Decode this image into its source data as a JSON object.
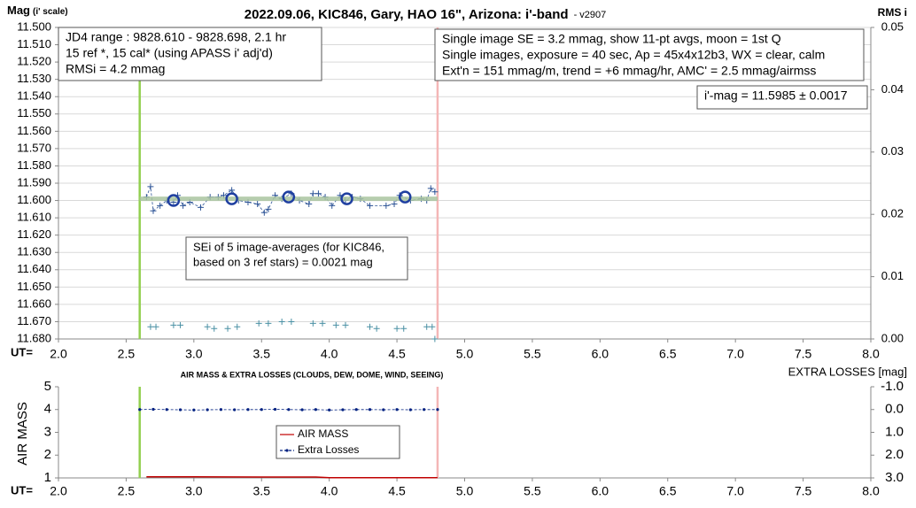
{
  "chart_data": [
    {
      "type": "scatter",
      "title": "2022.09.06, KIC846, Gary, HAO 16\", Arizona: i'-band",
      "subtitle": "- v2907",
      "ylabel": "Mag",
      "ylabel_note": "(i' scale)",
      "y2label": "RMS i",
      "xlabel": "UT=",
      "xlim": [
        2,
        8
      ],
      "xticks": [
        {
          "value": 2,
          "label": "2.0"
        },
        {
          "value": 2.5,
          "label": "2.5"
        },
        {
          "value": 3,
          "label": "3.0"
        },
        {
          "value": 3.5,
          "label": "3.5"
        },
        {
          "value": 4,
          "label": "4.0"
        },
        {
          "value": 4.5,
          "label": "4.5"
        },
        {
          "value": 5,
          "label": "5.0"
        },
        {
          "value": 5.5,
          "label": "5.5"
        },
        {
          "value": 6,
          "label": "6.0"
        },
        {
          "value": 6.5,
          "label": "6.5"
        },
        {
          "value": 7,
          "label": "7.0"
        },
        {
          "value": 7.5,
          "label": "7.5"
        },
        {
          "value": 8,
          "label": "8.0"
        }
      ],
      "ylim": [
        11.68,
        11.5
      ],
      "yticks": [
        {
          "value": 11.5,
          "label": "11.500"
        },
        {
          "value": 11.51,
          "label": "11.510"
        },
        {
          "value": 11.52,
          "label": "11.520"
        },
        {
          "value": 11.53,
          "label": "11.530"
        },
        {
          "value": 11.54,
          "label": "11.540"
        },
        {
          "value": 11.55,
          "label": "11.550"
        },
        {
          "value": 11.56,
          "label": "11.560"
        },
        {
          "value": 11.57,
          "label": "11.570"
        },
        {
          "value": 11.58,
          "label": "11.580"
        },
        {
          "value": 11.59,
          "label": "11.590"
        },
        {
          "value": 11.6,
          "label": "11.600"
        },
        {
          "value": 11.61,
          "label": "11.610"
        },
        {
          "value": 11.62,
          "label": "11.620"
        },
        {
          "value": 11.63,
          "label": "11.630"
        },
        {
          "value": 11.64,
          "label": "11.640"
        },
        {
          "value": 11.65,
          "label": "11.650"
        },
        {
          "value": 11.66,
          "label": "11.660"
        },
        {
          "value": 11.67,
          "label": "11.670"
        },
        {
          "value": 11.68,
          "label": "11.680"
        }
      ],
      "y2lim": [
        0,
        0.05
      ],
      "y2ticks": [
        {
          "value": 0,
          "label": "0.00"
        },
        {
          "value": 0.01,
          "label": "0.01"
        },
        {
          "value": 0.02,
          "label": "0.02"
        },
        {
          "value": 0.03,
          "label": "0.03"
        },
        {
          "value": 0.04,
          "label": "0.04"
        },
        {
          "value": 0.05,
          "label": "0.05"
        }
      ],
      "grid": true,
      "vlines": [
        {
          "x": 2.6,
          "color": "#92d050"
        },
        {
          "x": 4.8,
          "color": "#f4b6b6"
        }
      ],
      "series": [
        {
          "color": "#2f5597",
          "marker": "plus",
          "line": "dashed",
          "x": [
            2.65,
            2.68,
            2.7,
            2.75,
            2.8,
            2.85,
            2.88,
            2.92,
            2.97,
            3.05,
            3.12,
            3.18,
            3.22,
            3.28,
            3.33,
            3.4,
            3.47,
            3.52,
            3.55,
            3.6,
            3.65,
            3.72,
            3.78,
            3.85,
            3.88,
            3.92,
            3.97,
            4.02,
            4.08,
            4.12,
            4.17,
            4.23,
            4.3,
            4.42,
            4.48,
            4.52,
            4.6,
            4.68,
            4.72,
            4.75,
            4.78
          ],
          "values": [
            11.598,
            11.592,
            11.606,
            11.603,
            11.6,
            11.601,
            11.597,
            11.603,
            11.601,
            11.604,
            11.598,
            11.598,
            11.597,
            11.594,
            11.6,
            11.601,
            11.602,
            11.607,
            11.605,
            11.597,
            11.599,
            11.596,
            11.6,
            11.602,
            11.596,
            11.596,
            11.598,
            11.603,
            11.597,
            11.6,
            11.598,
            11.599,
            11.603,
            11.603,
            11.602,
            11.597,
            11.6,
            11.599,
            11.6,
            11.593,
            11.595
          ]
        },
        {
          "color": "#a9c4a0",
          "line": "solid",
          "x": [
            2.6,
            4.8
          ],
          "values": [
            11.599,
            11.599
          ]
        },
        {
          "color": "#1f3fa0",
          "marker": "circle",
          "x": [
            2.85,
            3.28,
            3.7,
            4.13,
            4.56
          ],
          "values": [
            11.6,
            11.599,
            11.598,
            11.599,
            11.598
          ]
        },
        {
          "color": "#4a90a4",
          "marker": "plus",
          "x": [
            2.68,
            2.72,
            2.85,
            2.9,
            3.1,
            3.15,
            3.25,
            3.32,
            3.48,
            3.55,
            3.65,
            3.72,
            3.88,
            3.95,
            4.05,
            4.12,
            4.3,
            4.35,
            4.5,
            4.55,
            4.72,
            4.76,
            4.78
          ],
          "values": [
            11.673,
            11.673,
            11.672,
            11.672,
            11.673,
            11.674,
            11.674,
            11.673,
            11.671,
            11.671,
            11.67,
            11.67,
            11.671,
            11.671,
            11.672,
            11.672,
            11.673,
            11.674,
            11.674,
            11.674,
            11.673,
            11.673,
            11.68
          ]
        }
      ],
      "annotations": [
        {
          "lines": [
            "JD4 range : 9828.610 - 9828.698, 2.1  hr",
            "15 ref *, 15 cal* (using APASS i' adj'd)",
            "RMSi = 4.2 mmag"
          ]
        },
        {
          "lines": [
            "Single image SE = 3.2 mmag, show 11-pt avgs, moon = 1st Q",
            "Single images, exposure = 40 sec, Ap = 45x4x12b3, WX = clear, calm",
            "Ext'n = 151 mmag/m, trend = +6 mmag/hr, AMC' = 2.5 mmag/airmss"
          ]
        },
        {
          "lines": [
            "i'-mag = 11.5985 ± 0.0017"
          ]
        },
        {
          "lines": [
            "SEi of 5 image-averages (for KIC846,",
            "based on 3 ref stars) = 0.0021 mag"
          ]
        }
      ]
    },
    {
      "type": "line",
      "title": "AIR MASS & EXTRA LOSSES (CLOUDS, DEW, DOME, WIND, SEEING)",
      "ylabel": "AIR MASS",
      "y2label": "EXTRA LOSSES [mag]",
      "xlabel": "UT=",
      "xlim": [
        2,
        8
      ],
      "xticks": [
        {
          "value": 2,
          "label": "2.0"
        },
        {
          "value": 2.5,
          "label": "2.5"
        },
        {
          "value": 3,
          "label": "3.0"
        },
        {
          "value": 3.5,
          "label": "3.5"
        },
        {
          "value": 4,
          "label": "4.0"
        },
        {
          "value": 4.5,
          "label": "4.5"
        },
        {
          "value": 5,
          "label": "5.0"
        },
        {
          "value": 5.5,
          "label": "5.5"
        },
        {
          "value": 6,
          "label": "6.0"
        },
        {
          "value": 6.5,
          "label": "6.5"
        },
        {
          "value": 7,
          "label": "7.0"
        },
        {
          "value": 7.5,
          "label": "7.5"
        },
        {
          "value": 8,
          "label": "8.0"
        }
      ],
      "ylim": [
        1,
        5
      ],
      "yticks": [
        1,
        2,
        3,
        4,
        5
      ],
      "y2lim": [
        3,
        -1
      ],
      "y2ticks": [
        {
          "value": -1,
          "label": "-1.0"
        },
        {
          "value": 0,
          "label": "0.0"
        },
        {
          "value": 1,
          "label": "1.0"
        },
        {
          "value": 2,
          "label": "2.0"
        },
        {
          "value": 3,
          "label": "3.0"
        }
      ],
      "grid": false,
      "vlines": [
        {
          "x": 2.6,
          "color": "#92d050"
        },
        {
          "x": 4.8,
          "color": "#f4b6b6"
        }
      ],
      "series": [
        {
          "name": "AIR MASS",
          "color": "#c00000",
          "line": "solid",
          "x": [
            2.65,
            3.0,
            3.5,
            3.9,
            4.0,
            4.5,
            4.8
          ],
          "values": [
            1.05,
            1.05,
            1.04,
            1.04,
            1.01,
            1.01,
            1.01
          ]
        },
        {
          "name": "Extra Losses",
          "color": "#002080",
          "axis": "y2",
          "marker": "dot",
          "line": "dashed",
          "x": [
            2.6,
            2.7,
            2.8,
            2.9,
            3.0,
            3.1,
            3.2,
            3.3,
            3.4,
            3.5,
            3.6,
            3.7,
            3.8,
            3.9,
            4.0,
            4.1,
            4.2,
            4.3,
            4.4,
            4.5,
            4.6,
            4.7,
            4.8
          ],
          "values": [
            0.0,
            -0.01,
            0.0,
            0.01,
            0.02,
            0.01,
            0.0,
            0.01,
            0.0,
            0.0,
            -0.01,
            0.0,
            0.01,
            0.0,
            0.02,
            0.01,
            0.0,
            0.0,
            0.01,
            0.0,
            0.01,
            0.0,
            0.0
          ]
        }
      ],
      "legend": "center"
    }
  ]
}
